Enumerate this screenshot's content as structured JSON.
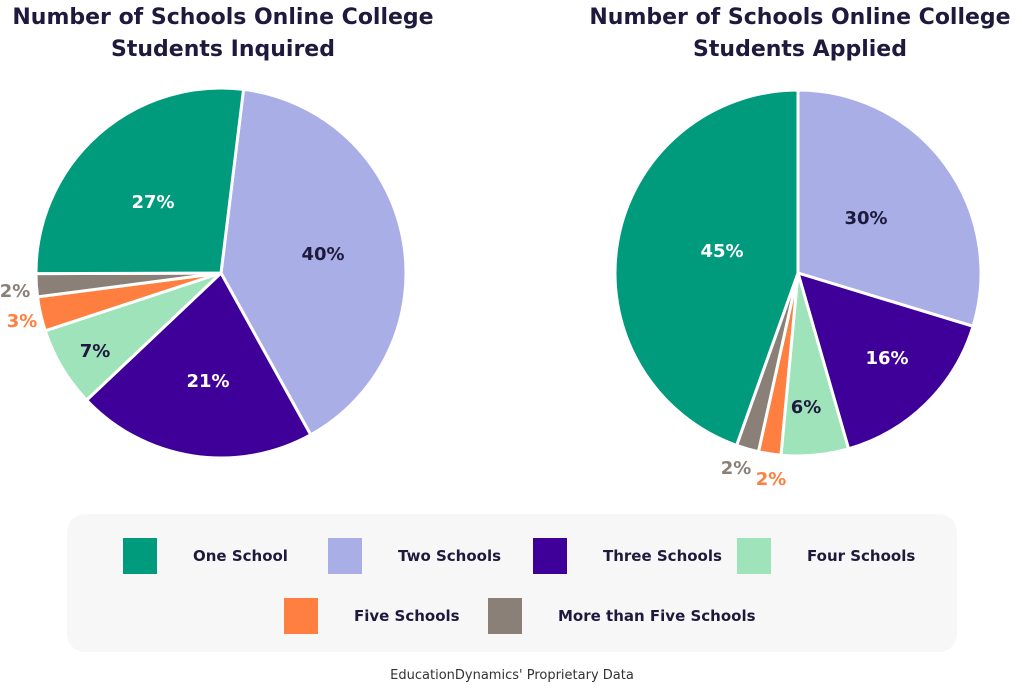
{
  "chart_data": [
    {
      "type": "pie",
      "title": "Number of Schools Online College Students Inquired",
      "categories": [
        "One School",
        "Two Schools",
        "Three Schools",
        "Four Schools",
        "Five Schools",
        "More than Five Schools"
      ],
      "values": [
        27,
        40,
        21,
        7,
        3,
        2
      ],
      "labels": [
        "27%",
        "40%",
        "21%",
        "7%",
        "3%",
        "2%"
      ]
    },
    {
      "type": "pie",
      "title": "Number of Schools Online College Students Applied",
      "categories": [
        "One School",
        "Two Schools",
        "Three Schools",
        "Four Schools",
        "Five Schools",
        "More than Five Schools"
      ],
      "values": [
        45,
        30,
        16,
        6,
        2,
        2
      ],
      "labels": [
        "45%",
        "30%",
        "16%",
        "6%",
        "2%",
        "2%"
      ]
    }
  ],
  "colors": {
    "One School": "#009a7c",
    "Two Schools": "#aaaee6",
    "Three Schools": "#3f0099",
    "Four Schools": "#9fe3bb",
    "Five Schools": "#ff7f40",
    "More than Five Schools": "#8a8077"
  },
  "legend": {
    "placement": "bottom",
    "items": [
      "One School",
      "Two Schools",
      "Three Schools",
      "Four Schools",
      "Five Schools",
      "More than Five Schools"
    ]
  },
  "footer": "EducationDynamics' Proprietary Data"
}
